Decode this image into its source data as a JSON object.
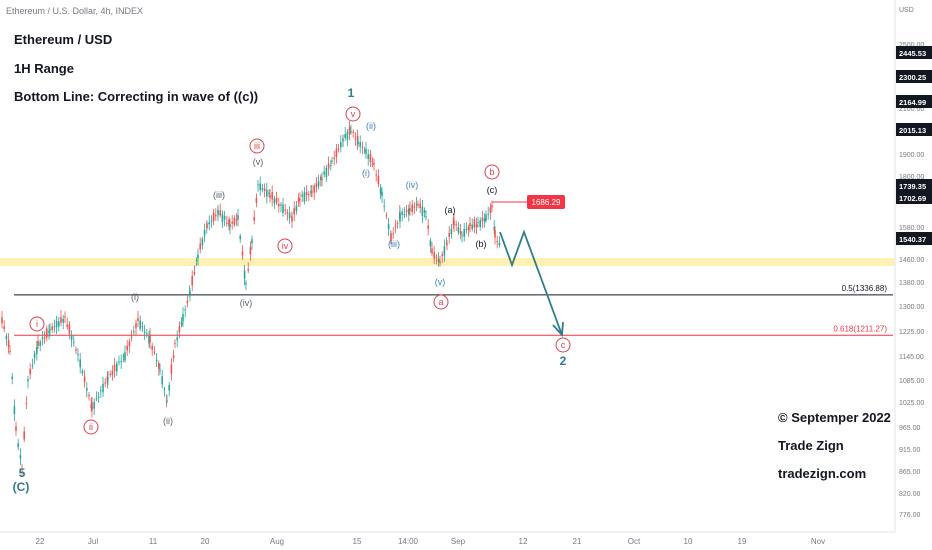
{
  "header": {
    "symbol_line": "Ethereum / U.S. Dollar, 4h, INDEX"
  },
  "overlay": {
    "title": "Ethereum / USD",
    "range": "1H Range",
    "bottom_line": "Bottom Line: Correcting in wave  of ((c))"
  },
  "footer": {
    "copyright": "© Septemper 2022",
    "brand": "Trade Zign",
    "website": "tradezign.com"
  },
  "chart_data": {
    "type": "candlestick",
    "currency_label": "USD",
    "x_tick_labels": [
      "22",
      "Jul",
      "11",
      "20",
      "Aug",
      "15",
      "14:00",
      "Sep",
      "12",
      "21",
      "Oct",
      "10",
      "19",
      "Nov"
    ],
    "y_tick_labels": [
      "2500.00",
      "2300.00",
      "2100.00",
      "1900.00",
      "1800.00",
      "1580.00",
      "1460.00",
      "1380.00",
      "1300.00",
      "1225.00",
      "1145.00",
      "1085.00",
      "1025.00",
      "965.00",
      "915.00",
      "865.00",
      "820.00",
      "776.00"
    ],
    "price_badges": [
      {
        "value": "2445.53",
        "type": "dark"
      },
      {
        "value": "2300.25",
        "type": "dark"
      },
      {
        "value": "2164.99",
        "type": "dark"
      },
      {
        "value": "2015.13",
        "type": "dark"
      },
      {
        "value": "1739.35",
        "type": "dark"
      },
      {
        "value": "1702.69",
        "type": "dark"
      },
      {
        "value": "1540.37",
        "type": "dark"
      }
    ],
    "marked_price": "1686.29",
    "levels": [
      {
        "label": "0.5(1336.88)",
        "value": 1336.88,
        "color": "#131722"
      },
      {
        "label": "0.618(1211.27)",
        "value": 1211.27,
        "color": "#f23645"
      }
    ],
    "support_zone_color": "#fff0b3",
    "wave_labels": [
      {
        "text": "5",
        "style": "teal-plain"
      },
      {
        "text": "(C)",
        "style": "teal-plain"
      },
      {
        "text": "i",
        "style": "red-circle"
      },
      {
        "text": "ii",
        "style": "red-circle"
      },
      {
        "text": "(i)",
        "style": "grey-plain"
      },
      {
        "text": "(ii)",
        "style": "grey-plain"
      },
      {
        "text": "(iii)",
        "style": "grey-plain"
      },
      {
        "text": "(iv)",
        "style": "grey-plain"
      },
      {
        "text": "(v)",
        "style": "grey-plain"
      },
      {
        "text": "iii",
        "style": "red-circle"
      },
      {
        "text": "iv",
        "style": "red-circle"
      },
      {
        "text": "1",
        "style": "teal-plain"
      },
      {
        "text": "v",
        "style": "red-circle"
      },
      {
        "text": "(ii)",
        "style": "blue-plain"
      },
      {
        "text": "(i)",
        "style": "blue-plain"
      },
      {
        "text": "(iii)",
        "style": "blue-plain"
      },
      {
        "text": "(iv)",
        "style": "blue-plain"
      },
      {
        "text": "(v)",
        "style": "blue-plain"
      },
      {
        "text": "a",
        "style": "red-circle"
      },
      {
        "text": "(a)",
        "style": "dark-plain"
      },
      {
        "text": "(b)",
        "style": "dark-plain"
      },
      {
        "text": "(c)",
        "style": "dark-plain"
      },
      {
        "text": "b",
        "style": "red-circle"
      },
      {
        "text": "c",
        "style": "red-circle"
      },
      {
        "text": "2",
        "style": "teal-plain"
      }
    ],
    "colors": {
      "up": "#26a69a",
      "down": "#ef5350",
      "projection": "#2f7c8e",
      "text_teal": "#2f7c8e",
      "text_red": "#e0404d",
      "text_blue": "#3d7fbf",
      "text_grey": "#5d606b"
    }
  }
}
